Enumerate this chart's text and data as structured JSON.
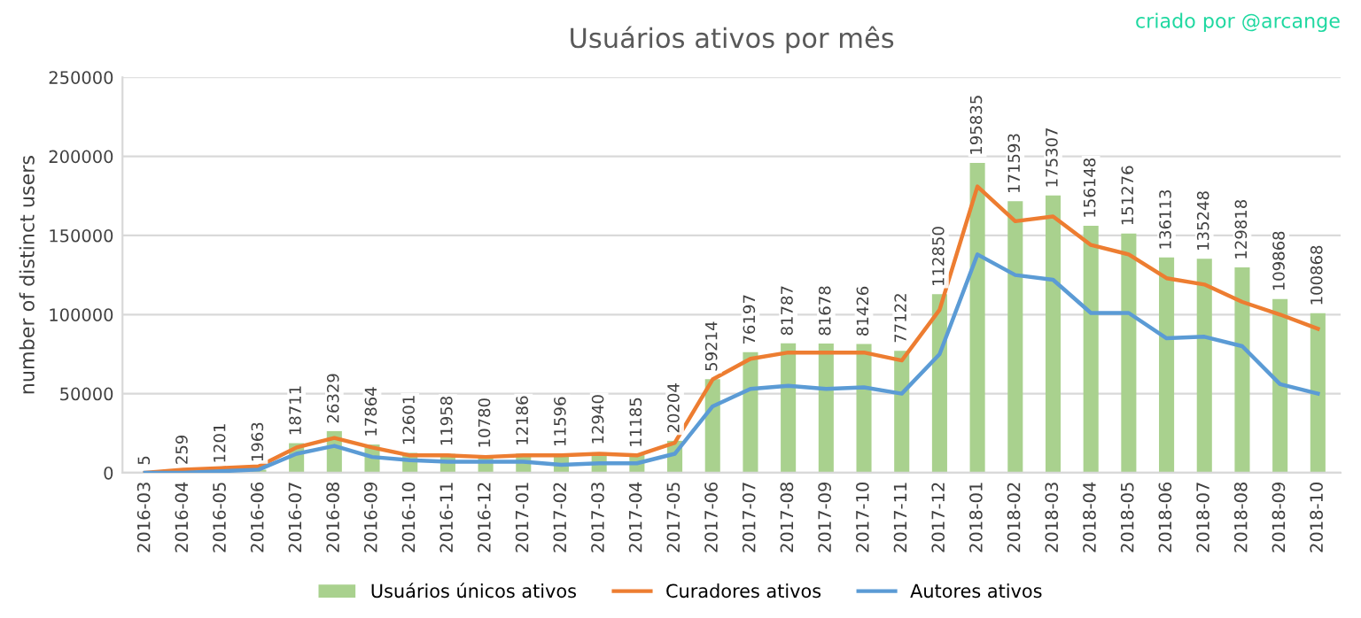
{
  "chart_data": {
    "type": "bar",
    "title": "Usuários ativos por mês",
    "ylabel": "number of distinct users",
    "annotations": [
      "criado por @arcange"
    ],
    "categories": [
      "2016-03",
      "2016-04",
      "2016-05",
      "2016-06",
      "2016-07",
      "2016-08",
      "2016-09",
      "2016-10",
      "2016-11",
      "2016-12",
      "2017-01",
      "2017-02",
      "2017-03",
      "2017-04",
      "2017-05",
      "2017-06",
      "2017-07",
      "2017-08",
      "2017-09",
      "2017-10",
      "2017-11",
      "2017-12",
      "2018-01",
      "2018-02",
      "2018-03",
      "2018-04",
      "2018-05",
      "2018-06",
      "2018-07",
      "2018-08",
      "2018-09",
      "2018-10"
    ],
    "series": [
      {
        "name": "Usuários únicos ativos",
        "color": "#a9d18e",
        "data_labels": true,
        "values": [
          5,
          259,
          1201,
          1963,
          18711,
          26329,
          17864,
          12601,
          11958,
          10780,
          12186,
          11596,
          12940,
          11185,
          20204,
          59214,
          76197,
          81787,
          81678,
          81426,
          77122,
          112850,
          195835,
          171593,
          175307,
          156148,
          151276,
          136113,
          135248,
          129818,
          109868,
          100868
        ]
      },
      {
        "name": "Curadores ativos",
        "type": "line",
        "color": "#ed7d31",
        "values": [
          0,
          2000,
          3000,
          4000,
          16000,
          22000,
          16000,
          11000,
          11000,
          10000,
          11000,
          11000,
          12000,
          11000,
          19000,
          59000,
          72000,
          76000,
          76000,
          76000,
          71000,
          103000,
          181000,
          159000,
          162000,
          144000,
          138000,
          123000,
          119000,
          108000,
          100000,
          91000
        ]
      },
      {
        "name": "Autores ativos",
        "type": "line",
        "color": "#5b9bd5",
        "values": [
          0,
          0,
          1000,
          2000,
          12000,
          17000,
          10000,
          8000,
          7000,
          7000,
          7000,
          5000,
          6000,
          6000,
          12000,
          42000,
          53000,
          55000,
          53000,
          54000,
          50000,
          75000,
          138000,
          125000,
          122000,
          101000,
          101000,
          85000,
          86000,
          80000,
          56000,
          50000
        ]
      }
    ],
    "ylim": [
      0,
      250000
    ],
    "yticks": [
      0,
      50000,
      100000,
      150000,
      200000,
      250000
    ],
    "grid": "y",
    "legend": "bottom",
    "marker": "none",
    "line_style": "solid"
  }
}
